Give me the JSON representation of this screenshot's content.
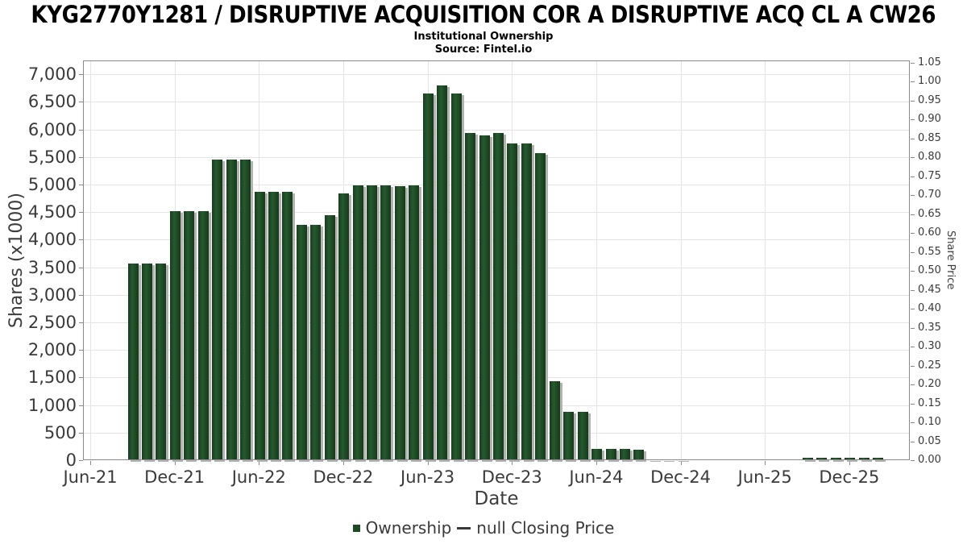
{
  "header": {
    "title": "KYG2770Y1281 / DISRUPTIVE ACQUISITION COR A DISRUPTIVE ACQ CL A CW26",
    "subtitle": "Institutional Ownership",
    "source": "Source: Fintel.io"
  },
  "legend": {
    "ownership_label": "Ownership",
    "closing_price_label": "null Closing Price"
  },
  "chart_data": {
    "type": "bar",
    "title": "KYG2770Y1281 / DISRUPTIVE ACQUISITION COR A DISRUPTIVE ACQ CL A CW26",
    "subtitle": "Institutional Ownership",
    "source": "Source: Fintel.io",
    "xlabel": "Date",
    "ylabel_left": "Shares (x1000)",
    "ylabel_right": "Share Price",
    "ylim_left": [
      0,
      7000
    ],
    "ytick_step_left": 500,
    "left_tick_labels": [
      "0",
      "500",
      "1,000",
      "1,500",
      "2,000",
      "2,500",
      "3,000",
      "3,500",
      "4,000",
      "4,500",
      "5,000",
      "5,500",
      "6,000",
      "6,500",
      "7,000"
    ],
    "ylim_right": [
      0,
      1.05
    ],
    "ytick_step_right": 0.05,
    "right_tick_labels": [
      "0.00",
      "0.05",
      "0.10",
      "0.15",
      "0.20",
      "0.25",
      "0.30",
      "0.35",
      "0.40",
      "0.45",
      "0.50",
      "0.55",
      "0.60",
      "0.65",
      "0.70",
      "0.75",
      "0.80",
      "0.85",
      "0.90",
      "0.95",
      "1.00",
      "1.05"
    ],
    "x_tick_labels": [
      "Jun-21",
      "Dec-21",
      "Jun-22",
      "Dec-22",
      "Jun-23",
      "Dec-23",
      "Jun-24",
      "Dec-24",
      "Jun-25",
      "Dec-25"
    ],
    "grid": true,
    "legend_position": "bottom",
    "series_name": "Ownership",
    "bar_color": "#1d4a23",
    "x": [
      "Sep-21",
      "Oct-21",
      "Nov-21",
      "Dec-21",
      "Jan-22",
      "Feb-22",
      "Mar-22",
      "Apr-22",
      "May-22",
      "Jun-22",
      "Jul-22",
      "Aug-22",
      "Sep-22",
      "Oct-22",
      "Nov-22",
      "Dec-22",
      "Jan-23",
      "Feb-23",
      "Mar-23",
      "Apr-23",
      "May-23",
      "Jun-23",
      "Jul-23",
      "Aug-23",
      "Sep-23",
      "Oct-23",
      "Nov-23",
      "Dec-23",
      "Jan-24",
      "Feb-24",
      "Mar-24",
      "Apr-24",
      "May-24",
      "Jun-24",
      "Jul-24",
      "Aug-24",
      "Sep-24",
      "Oct-24",
      "Nov-24",
      "Dec-24",
      "Jan-25",
      "Feb-25",
      "Mar-25",
      "Apr-25",
      "May-25",
      "Jun-25",
      "Jul-25",
      "Aug-25",
      "Sep-25",
      "Oct-25",
      "Nov-25",
      "Dec-25",
      "Jan-26",
      "Feb-26"
    ],
    "values": [
      3560,
      3560,
      3560,
      4520,
      4520,
      4520,
      5460,
      5460,
      5460,
      4870,
      4870,
      4870,
      4270,
      4270,
      4450,
      4840,
      4980,
      4980,
      4980,
      4970,
      4980,
      6650,
      6800,
      6650,
      5930,
      5890,
      5930,
      5740,
      5750,
      5570,
      1430,
      870,
      870,
      200,
      200,
      200,
      190,
      15,
      15,
      15,
      0,
      0,
      0,
      0,
      0,
      0,
      0,
      0,
      40,
      40,
      40,
      40,
      40,
      40
    ]
  }
}
